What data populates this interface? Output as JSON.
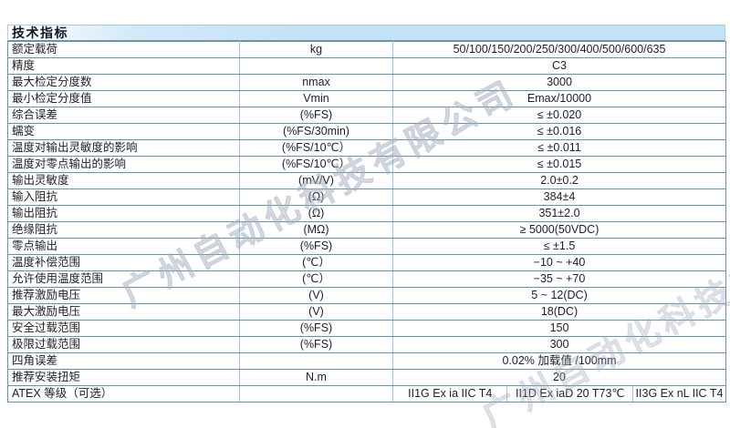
{
  "page": {
    "title": "技术指标"
  },
  "watermark": {
    "text": "广州自动化科技有限公司"
  },
  "colors": {
    "title_bar_fill": "#c3e2f5",
    "row_border_horizontal": "#6793aa",
    "row_border_vertical": "#9dc4d8",
    "text": "#1c2026",
    "watermark": "#a8b2be"
  },
  "table": {
    "rows": [
      {
        "name": "额定载荷",
        "unit": "kg",
        "value": "50/100/150/200/250/300/400/500/600/635"
      },
      {
        "name": "精度",
        "unit": "",
        "value": "C3"
      },
      {
        "name": "最大检定分度数",
        "unit": "nmax",
        "value": "3000"
      },
      {
        "name": "最小检定分度值",
        "unit": "Vmin",
        "value": "Emax/10000"
      },
      {
        "name": "综合误差",
        "unit": "(%FS)",
        "value": "≤ ±0.020"
      },
      {
        "name": "蠕变",
        "unit": "(%FS/30min)",
        "value": "≤ ±0.016"
      },
      {
        "name": "温度对输出灵敏度的影响",
        "unit": "(%FS/10℃）",
        "value": "≤ ±0.011"
      },
      {
        "name": "温度对零点输出的影响",
        "unit": "(%FS/10℃）",
        "value": "≤ ±0.015"
      },
      {
        "name": "输出灵敏度",
        "unit": "(mV/V)",
        "value": "2.0±0.2"
      },
      {
        "name": "输入阻抗",
        "unit": "(Ω)",
        "value": "384±4"
      },
      {
        "name": "输出阻抗",
        "unit": "(Ω)",
        "value": "351±2.0"
      },
      {
        "name": "绝缘阻抗",
        "unit": "(MΩ)",
        "value": "≥ 5000(50VDC)"
      },
      {
        "name": "零点输出",
        "unit": "(%FS)",
        "value": "≤ ±1.5"
      },
      {
        "name": "温度补偿范围",
        "unit": "(℃）",
        "value": "−10 ~ +40"
      },
      {
        "name": "允许使用温度范围",
        "unit": "(℃）",
        "value": "−35 ~ +70"
      },
      {
        "name": "推荐激励电压",
        "unit": "(V)",
        "value": "5 ~ 12(DC)"
      },
      {
        "name": "最大激励电压",
        "unit": "(V)",
        "value": "18(DC)"
      },
      {
        "name": "安全过载范围",
        "unit": "(%FS)",
        "value": "150"
      },
      {
        "name": "极限过载范围",
        "unit": "(%FS)",
        "value": "300"
      },
      {
        "name": "四角误差",
        "unit": "",
        "value": "0.02% 加载值 /100mm"
      },
      {
        "name": "推荐安装扭矩",
        "unit": "N.m",
        "value": "20"
      }
    ],
    "atex": {
      "name": "ATEX 等级（可选）",
      "unit": "",
      "values": [
        "II1G Ex ia IIC T4",
        "II1D Ex iaD 20 T73℃",
        "II3G Ex nL IIC T4"
      ]
    }
  }
}
